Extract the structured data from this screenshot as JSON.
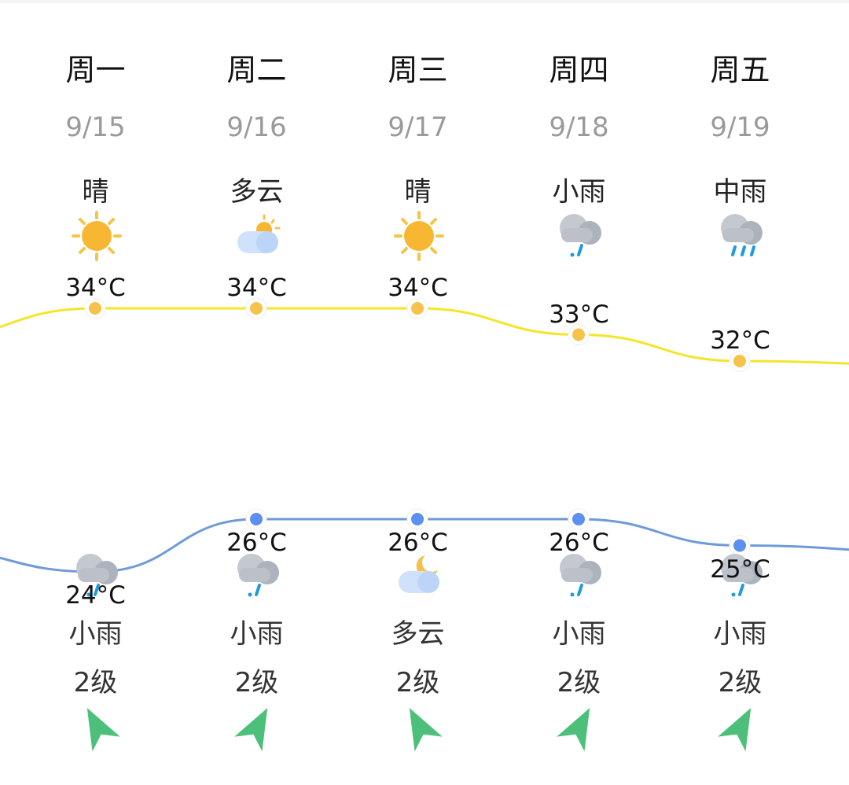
{
  "days": [
    {
      "day": "周一",
      "date": "9/15",
      "day_cond": "晴",
      "day_icon": "sun-icon",
      "high": "34°C",
      "low": "24°C",
      "night_cond": "小雨",
      "night_icon": "light-rain-icon",
      "wind": "2级",
      "wind_dir": "left"
    },
    {
      "day": "周二",
      "date": "9/16",
      "day_cond": "多云",
      "day_icon": "partly-cloudy-icon",
      "high": "34°C",
      "low": "26°C",
      "night_cond": "小雨",
      "night_icon": "light-rain-icon",
      "wind": "2级",
      "wind_dir": "right"
    },
    {
      "day": "周三",
      "date": "9/17",
      "day_cond": "晴",
      "day_icon": "sun-icon",
      "high": "34°C",
      "low": "26°C",
      "night_cond": "多云",
      "night_icon": "cloudy-night-icon",
      "wind": "2级",
      "wind_dir": "left"
    },
    {
      "day": "周四",
      "date": "9/18",
      "day_cond": "小雨",
      "day_icon": "light-rain-icon",
      "high": "33°C",
      "low": "26°C",
      "night_cond": "小雨",
      "night_icon": "light-rain-icon",
      "wind": "2级",
      "wind_dir": "right"
    },
    {
      "day": "周五",
      "date": "9/19",
      "day_cond": "中雨",
      "day_icon": "moderate-rain-icon",
      "high": "32°C",
      "low": "25°C",
      "night_cond": "小雨",
      "night_icon": "light-rain-icon",
      "wind": "2级",
      "wind_dir": "right"
    }
  ],
  "chart_data": {
    "type": "line",
    "categories": [
      "9/15",
      "9/16",
      "9/17",
      "9/18",
      "9/19"
    ],
    "series": [
      {
        "values": [
          34,
          34,
          34,
          33,
          32
        ],
        "color": "#f5e52a",
        "point_color": "#f6c24a"
      },
      {
        "values": [
          24,
          26,
          26,
          26,
          25
        ],
        "color": "#6f9ad8",
        "point_color": "#5b8ff0"
      }
    ]
  }
}
